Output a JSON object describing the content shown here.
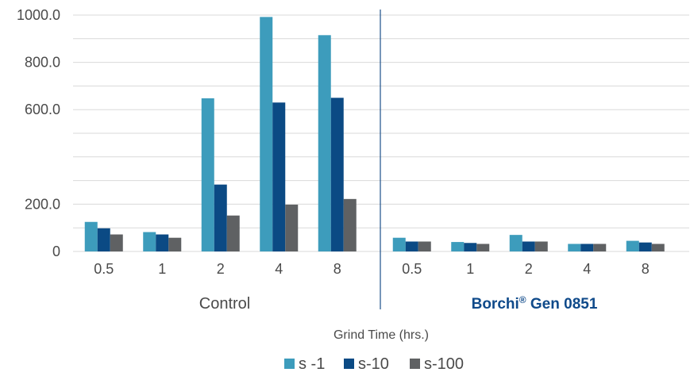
{
  "chart_data": {
    "type": "bar",
    "xlabel": "Grind Time (hrs.)",
    "ylabel": "",
    "ylim": [
      0,
      1000
    ],
    "yticks": [
      "0",
      "200.0",
      "600.0",
      "800.0",
      "1000.0"
    ],
    "ytick_values": [
      0,
      200,
      600,
      800,
      1000
    ],
    "grid": true,
    "legend": "bottom",
    "groups": [
      {
        "name": "Control",
        "categories": [
          "0.5",
          "1",
          "2",
          "4",
          "8"
        ],
        "series": [
          {
            "name": "s -1",
            "values": [
              125,
              82,
              648,
              992,
              915
            ]
          },
          {
            "name": "s-10",
            "values": [
              98,
              72,
              283,
              630,
              650
            ]
          },
          {
            "name": "s-100",
            "values": [
              72,
              58,
              152,
              198,
              222
            ]
          }
        ]
      },
      {
        "name": "Borchi",
        "name_sup": "®",
        "name_suffix": " Gen 0851",
        "categories": [
          "0.5",
          "1",
          "2",
          "4",
          "8"
        ],
        "series": [
          {
            "name": "s -1",
            "values": [
              58,
              40,
              70,
              32,
              45
            ]
          },
          {
            "name": "s-10",
            "values": [
              42,
              36,
              42,
              32,
              38
            ]
          },
          {
            "name": "s-100",
            "values": [
              42,
              32,
              42,
              32,
              32
            ]
          }
        ]
      }
    ],
    "colors": {
      "s -1": "#3d9cbc",
      "s-10": "#0b4a84",
      "s-100": "#5f6163",
      "grid": "#d9d9d9",
      "divider": "#1b4f8a",
      "brand": "#0f4a8a"
    }
  }
}
